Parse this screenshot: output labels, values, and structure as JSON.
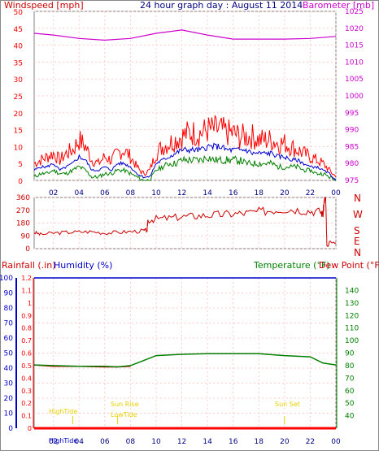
{
  "header": {
    "wind_label": "Windspeed [mph]",
    "title": "24 hour graph day : August 11 2014",
    "baro_label": "Barometer [mb]"
  },
  "lower_header": {
    "rain_label": "Rainfall (.in)",
    "humidity_label": "Humidity (%)",
    "temp_label": "Temperature (°F)",
    "dew_label": "Dew Point (°F)"
  },
  "colors": {
    "wind": "#ff0000",
    "gust_avg": "#0000cc",
    "avg_wind": "#008000",
    "barometer": "#cc00cc",
    "direction": "#cc0000",
    "rain": "#ff0000",
    "humidity": "#0000cc",
    "temperature": "#008000",
    "dewpoint": "#cc0000",
    "sun_marks": "#e8d000"
  },
  "annotations": {
    "high_tide": "HighTide",
    "sun_rise": "Sun Rise",
    "low_tide": "LowTide",
    "sun_set": "Sun Set",
    "high_bottom": "HighTide"
  },
  "chart_data": [
    {
      "type": "line",
      "name": "wind-barometer",
      "title": "24 hour graph day : August 11 2014",
      "x_ticks": [
        "02",
        "04",
        "06",
        "08",
        "10",
        "12",
        "14",
        "16",
        "18",
        "20",
        "22",
        "00"
      ],
      "x_range": [
        0.5,
        24
      ],
      "y_left": {
        "label": "Windspeed [mph]",
        "ylim": [
          0,
          50
        ],
        "ticks": [
          0,
          5,
          10,
          15,
          20,
          25,
          30,
          35,
          40,
          45,
          50
        ]
      },
      "y_right": {
        "label": "Barometer [mb]",
        "ylim": [
          975,
          1025
        ],
        "ticks": [
          975,
          980,
          985,
          990,
          995,
          1000,
          1005,
          1010,
          1015,
          1020,
          1025
        ]
      },
      "series": [
        {
          "key": "gust",
          "x": [
            0.5,
            1,
            1.5,
            2,
            2.5,
            3,
            3.5,
            4,
            4.5,
            5,
            5.5,
            6,
            6.5,
            7,
            7.5,
            8,
            8.5,
            9,
            9.5,
            10,
            10.5,
            11,
            11.5,
            12,
            12.5,
            13,
            13.5,
            14,
            14.5,
            15,
            15.5,
            16,
            16.5,
            17,
            17.5,
            18,
            18.5,
            19,
            19.5,
            20,
            20.5,
            21,
            21.5,
            22,
            22.5,
            23,
            23.5,
            24
          ],
          "y": [
            5,
            6,
            7,
            8,
            6,
            8,
            9,
            12,
            10,
            6,
            5,
            7,
            6,
            8,
            9,
            7,
            4,
            2,
            3,
            8,
            10,
            11,
            12,
            13,
            14,
            14,
            14,
            15,
            15,
            15,
            14,
            14,
            13,
            13,
            13,
            12,
            12,
            12,
            11,
            11,
            10,
            9,
            8,
            7,
            6,
            5,
            3,
            1
          ]
        },
        {
          "key": "average",
          "x": [
            0.5,
            1,
            1.5,
            2,
            2.5,
            3,
            3.5,
            4,
            4.5,
            5,
            5.5,
            6,
            6.5,
            7,
            7.5,
            8,
            8.5,
            9,
            9.5,
            10,
            10.5,
            11,
            11.5,
            12,
            12.5,
            13,
            13.5,
            14,
            14.5,
            15,
            15.5,
            16,
            16.5,
            17,
            17.5,
            18,
            18.5,
            19,
            19.5,
            20,
            20.5,
            21,
            21.5,
            22,
            22.5,
            23,
            23.5,
            24
          ],
          "y": [
            3,
            4,
            4,
            5,
            3,
            4,
            5,
            7,
            6,
            3,
            3,
            4,
            3,
            5,
            5,
            4,
            2,
            1,
            1,
            5,
            6,
            7,
            8,
            9,
            9,
            9,
            9,
            10,
            10,
            10,
            9,
            9,
            9,
            9,
            8,
            8,
            8,
            8,
            7,
            7,
            6,
            6,
            5,
            4,
            4,
            3,
            2,
            0
          ]
        },
        {
          "key": "avg_wind",
          "x": [
            0.5,
            1,
            1.5,
            2,
            2.5,
            3,
            3.5,
            4,
            4.5,
            5,
            5.5,
            6,
            6.5,
            7,
            7.5,
            8,
            8.5,
            9,
            9.5,
            10,
            10.5,
            11,
            11.5,
            12,
            12.5,
            13,
            13.5,
            14,
            14.5,
            15,
            15.5,
            16,
            16.5,
            17,
            17.5,
            18,
            18.5,
            19,
            19.5,
            20,
            20.5,
            21,
            21.5,
            22,
            22.5,
            23,
            23.5,
            24
          ],
          "y": [
            1,
            2,
            2,
            3,
            2,
            2,
            3,
            4,
            3,
            1,
            1,
            2,
            2,
            3,
            3,
            2,
            1,
            0,
            0,
            3,
            4,
            5,
            5,
            6,
            6,
            6,
            6,
            7,
            6,
            6,
            6,
            6,
            6,
            5,
            5,
            5,
            5,
            5,
            4,
            4,
            4,
            4,
            3,
            3,
            2,
            2,
            1,
            0
          ]
        },
        {
          "key": "barometer",
          "x": [
            0.5,
            2,
            4,
            6,
            8,
            10,
            12,
            14,
            16,
            18,
            20,
            22,
            24
          ],
          "y": [
            1018.5,
            1018,
            1017,
            1016.5,
            1017,
            1018.5,
            1019.5,
            1018,
            1016.8,
            1016.8,
            1016.8,
            1017,
            1017.6
          ]
        }
      ]
    },
    {
      "type": "line",
      "name": "wind-direction",
      "x_ticks": [
        "02",
        "04",
        "06",
        "08",
        "10",
        "12",
        "14",
        "16",
        "18",
        "20",
        "22",
        "00"
      ],
      "x_range": [
        0.5,
        24
      ],
      "ylim": [
        0,
        360
      ],
      "y_ticks": [
        0,
        90,
        180,
        270,
        360
      ],
      "compass": [
        "N",
        "W",
        "S",
        "E",
        "N"
      ],
      "series": [
        {
          "key": "direction",
          "x": [
            0.5,
            1,
            2,
            3,
            4,
            5,
            6,
            7,
            8,
            9,
            9.3,
            9.35,
            10,
            11,
            12,
            13,
            14,
            15,
            16,
            17,
            18,
            19,
            20,
            21,
            22,
            22.8,
            23,
            23.1,
            23.2,
            23.3,
            23.4,
            23.5,
            24
          ],
          "y": [
            115,
            100,
            110,
            115,
            118,
            120,
            110,
            115,
            120,
            125,
            130,
            200,
            210,
            215,
            225,
            230,
            235,
            240,
            245,
            250,
            260,
            270,
            280,
            275,
            265,
            260,
            240,
            350,
            360,
            20,
            15,
            50,
            40
          ]
        }
      ]
    },
    {
      "type": "line",
      "name": "temp-humidity-rain",
      "x_ticks": [
        "02",
        "04",
        "06",
        "08",
        "10",
        "12",
        "14",
        "16",
        "18",
        "20",
        "22",
        "00"
      ],
      "x_range": [
        0.5,
        24
      ],
      "humidity_axis": {
        "ylim": [
          0,
          100
        ],
        "ticks": [
          0,
          10,
          20,
          30,
          40,
          50,
          60,
          70,
          80,
          90,
          100
        ]
      },
      "rain_axis": {
        "ylim": [
          0,
          1.2
        ],
        "ticks": [
          0,
          0.1,
          0.2,
          0.3,
          0.4,
          0.5,
          0.6,
          0.7,
          0.8,
          0.9,
          1,
          1.1,
          1.2
        ]
      },
      "temp_axis": {
        "ylim": [
          30,
          150
        ],
        "ticks": [
          40,
          50,
          60,
          70,
          80,
          90,
          100,
          110,
          120,
          130,
          140
        ]
      },
      "series": [
        {
          "key": "humidity",
          "x": [
            0.5,
            24
          ],
          "y": [
            100,
            100
          ]
        },
        {
          "key": "temperature",
          "x": [
            0.5,
            2,
            4,
            6,
            7,
            8,
            9,
            10,
            12,
            14,
            16,
            18,
            20,
            22,
            23,
            24
          ],
          "y": [
            80.5,
            80,
            79.5,
            79.5,
            79,
            80,
            84,
            88,
            89,
            89.5,
            89.5,
            89.5,
            88,
            87,
            82,
            80.5
          ]
        },
        {
          "key": "dewpoint",
          "x": [
            0.5,
            2,
            4,
            6,
            7,
            8
          ],
          "y": [
            80.5,
            79.5,
            79.5,
            79,
            79,
            79.5
          ]
        },
        {
          "key": "rain",
          "x": [
            0.5,
            24
          ],
          "y": [
            0,
            0
          ]
        }
      ]
    }
  ]
}
